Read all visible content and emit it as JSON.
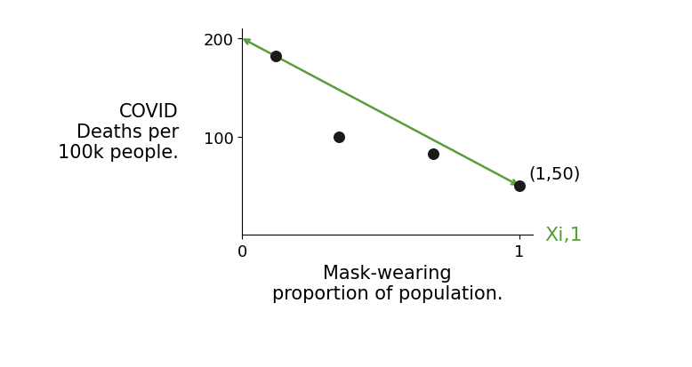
{
  "chart_data": {
    "type": "scatter",
    "x_label": "Mask-wearing\nproportion of population.",
    "y_label": "COVID\nDeaths per\n100k people.",
    "series": [
      {
        "type": "scatter",
        "color": "#1a1a1a",
        "marker": "o",
        "x": [
          0.12,
          0.35,
          0.69,
          1
        ],
        "values": [
          182,
          100,
          82,
          50
        ]
      },
      {
        "type": "line",
        "color": "#5a9e3a",
        "marker": "arrow",
        "line_style": "solid",
        "x": [
          0,
          1
        ],
        "values": [
          200,
          50
        ]
      }
    ],
    "annotations": [
      {
        "text": "(1,50)",
        "x": 1,
        "y": 50
      },
      {
        "text": "Xi,1",
        "color": "#5a9e3a"
      }
    ],
    "xlim": [
      0,
      1.05
    ],
    "ylim": [
      0,
      210
    ],
    "xticks": [
      0,
      1
    ],
    "yticks": [
      100,
      200
    ],
    "grid": false
  }
}
